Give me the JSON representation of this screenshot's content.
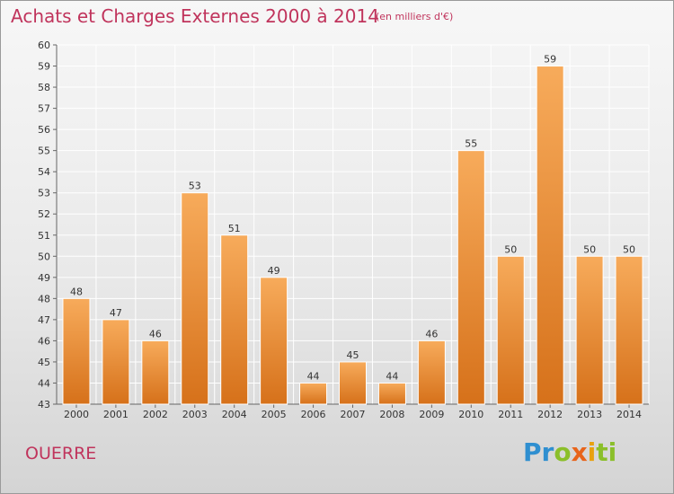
{
  "title": "Achats et Charges Externes 2000 à 2014",
  "unit_note": "(en milliers d'€)",
  "place_name": "OUERRE",
  "logo_text": "Proxiti",
  "colors": {
    "title": "#c0345c",
    "bar_top": "#f6a95a",
    "bar_bottom": "#d9741c",
    "grid": "#ffffff"
  },
  "chart_data": {
    "type": "bar",
    "categories": [
      "2000",
      "2001",
      "2002",
      "2003",
      "2004",
      "2005",
      "2006",
      "2007",
      "2008",
      "2009",
      "2010",
      "2011",
      "2012",
      "2013",
      "2014"
    ],
    "values": [
      48,
      47,
      46,
      53,
      51,
      49,
      44,
      45,
      44,
      46,
      55,
      50,
      59,
      50,
      50
    ],
    "ylim": [
      43,
      60
    ],
    "yticks": [
      43,
      44,
      45,
      46,
      47,
      48,
      49,
      50,
      51,
      52,
      53,
      54,
      55,
      56,
      57,
      58,
      59,
      60
    ],
    "grid": true,
    "xlabel": "",
    "ylabel": ""
  }
}
